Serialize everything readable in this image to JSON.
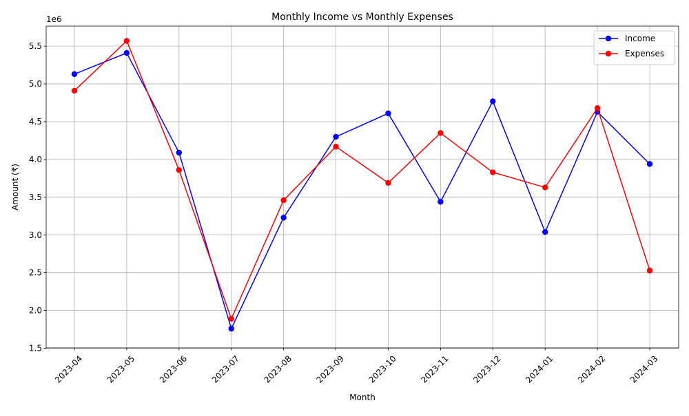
{
  "chart_data": {
    "type": "line",
    "title": "Monthly Income vs Monthly Expenses",
    "xlabel": "Month",
    "ylabel": "Amount (₹)",
    "y_offset_label": "1e6",
    "categories": [
      "2023-04",
      "2023-05",
      "2023-06",
      "2023-07",
      "2023-08",
      "2023-09",
      "2023-10",
      "2023-11",
      "2023-12",
      "2024-01",
      "2024-02",
      "2024-03"
    ],
    "y_ticks": [
      "1.5",
      "2.0",
      "2.5",
      "3.0",
      "3.5",
      "4.0",
      "4.5",
      "5.0",
      "5.5"
    ],
    "ylim": [
      1505000,
      5765000
    ],
    "grid": true,
    "legend_position": "top-right",
    "series": [
      {
        "name": "Income",
        "color": "#0000ff",
        "values": [
          5130000,
          5410000,
          4090000,
          1760000,
          3230000,
          4300000,
          4610000,
          3440000,
          4770000,
          3040000,
          4630000,
          3940000
        ]
      },
      {
        "name": "Expenses",
        "color": "#ff0000",
        "values": [
          4910000,
          5570000,
          3860000,
          1890000,
          3460000,
          4170000,
          3690000,
          4350000,
          3830000,
          3630000,
          4680000,
          2530000
        ]
      }
    ]
  }
}
